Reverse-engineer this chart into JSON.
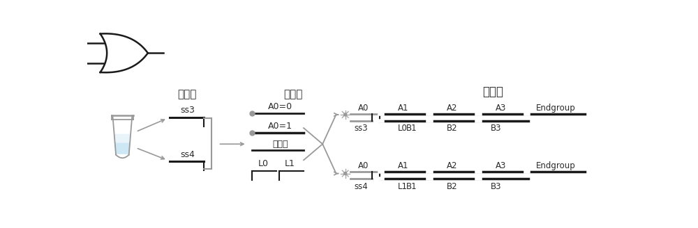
{
  "bg_color": "#ffffff",
  "text_color": "#2a2a2a",
  "line_color": "#1a1a1a",
  "gray_color": "#999999",
  "dark_gray": "#555555",
  "title_inputchain": "输入链",
  "title_substratechain": "底物链",
  "title_resultchain": "结果链",
  "labels_top1": [
    "A0",
    "A1",
    "A2",
    "A3",
    "Endgroup"
  ],
  "labels_bot1": [
    "ss3",
    "L0",
    "B1",
    "B2",
    "B3"
  ],
  "labels_top2": [
    "A0",
    "A1",
    "A2",
    "A3",
    "Endgroup"
  ],
  "labels_bot2": [
    "ss4",
    "L1",
    "B1",
    "B2",
    "B3"
  ],
  "sub_a0_0": "A0=0",
  "sub_a0_1": "A0=1",
  "sub_jia": "加数等",
  "sub_L0": "L0",
  "sub_L1": "L1"
}
